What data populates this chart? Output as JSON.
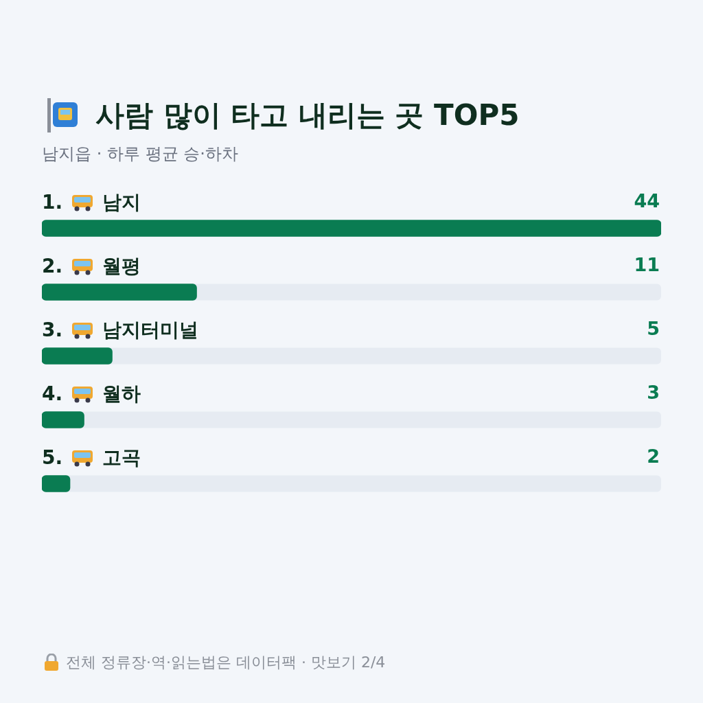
{
  "chart_data": {
    "type": "bar",
    "orientation": "horizontal",
    "title": "사람 많이 타고 내리는 곳 TOP5",
    "subtitle": "남지읍 · 하루 평균 승·하차",
    "categories": [
      "1. 남지",
      "2. 월평",
      "3. 남지터미널",
      "4. 월하",
      "5. 고곡"
    ],
    "values": [
      44,
      11,
      5,
      3,
      2
    ],
    "color": "#0a7c52",
    "data_labels": true,
    "annotations": [
      "전체 정류장·역·읽는법은 데이터팩 · 맛보기 2/4"
    ]
  }
}
